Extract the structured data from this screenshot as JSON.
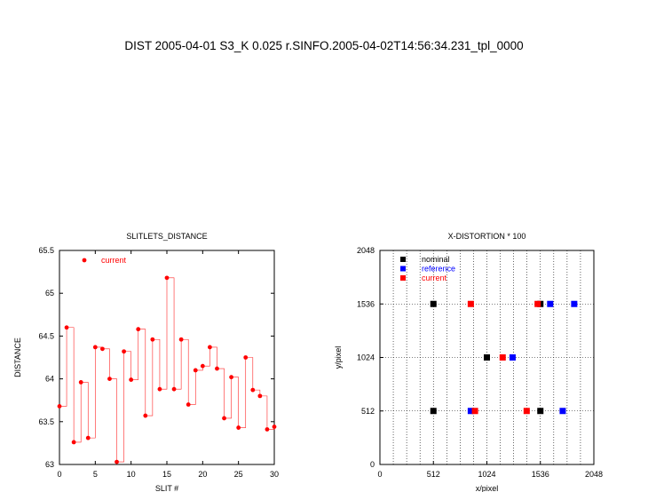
{
  "title": "DIST 2005-04-01 S3_K 0.025 r.SINFO.2005-04-02T14:56:34.231_tpl_0000",
  "chart_data": [
    {
      "type": "line",
      "title": "SLITLETS_DISTANCE",
      "xlabel": "SLIT #",
      "ylabel": "DISTANCE",
      "xlim": [
        0,
        30
      ],
      "ylim": [
        63,
        65.5
      ],
      "xticks": [
        "0",
        "5",
        "10",
        "15",
        "20",
        "25",
        "30"
      ],
      "yticks": [
        "63",
        "63.5",
        "64",
        "64.5",
        "65",
        "65.5"
      ],
      "legend_position": "top-left",
      "grid": false,
      "series": [
        {
          "name": "current",
          "color": "#ff0000",
          "step": true,
          "x": [
            0,
            1,
            2,
            3,
            4,
            5,
            6,
            7,
            8,
            9,
            10,
            11,
            12,
            13,
            14,
            15,
            16,
            17,
            18,
            19,
            20,
            21,
            22,
            23,
            24,
            25,
            26,
            27,
            28,
            29,
            30
          ],
          "y": [
            63.68,
            64.6,
            63.26,
            63.96,
            63.31,
            64.37,
            64.35,
            64.0,
            63.03,
            64.32,
            63.99,
            64.58,
            63.57,
            64.46,
            63.88,
            65.18,
            63.88,
            64.46,
            63.7,
            64.1,
            64.15,
            64.37,
            64.12,
            63.54,
            64.02,
            63.43,
            64.25,
            63.87,
            63.8,
            63.41,
            63.44
          ]
        }
      ]
    },
    {
      "type": "scatter",
      "title": "X-DISTORTION * 100",
      "xlabel": "x/pixel",
      "ylabel": "y/pixel",
      "xlim": [
        0,
        2048
      ],
      "ylim": [
        0,
        2048
      ],
      "xticks": [
        "0",
        "512",
        "1024",
        "1536",
        "2048"
      ],
      "yticks": [
        "0",
        "512",
        "1024",
        "1536",
        "2048"
      ],
      "legend_position": "top-left",
      "grid": true,
      "series": [
        {
          "name": "nominal",
          "color": "#000000",
          "x": [
            512,
            1536,
            1024,
            512,
            1536
          ],
          "y": [
            1536,
            1536,
            1024,
            512,
            512
          ]
        },
        {
          "name": "reference",
          "color": "#0000ff",
          "x": [
            1860,
            1270,
            1750,
            870,
            1630
          ],
          "y": [
            1536,
            1024,
            512,
            512,
            1536
          ]
        },
        {
          "name": "current",
          "color": "#ff0000",
          "x": [
            870,
            1510,
            1175,
            910,
            1405
          ],
          "y": [
            1536,
            1536,
            1024,
            512,
            512
          ]
        }
      ]
    }
  ]
}
